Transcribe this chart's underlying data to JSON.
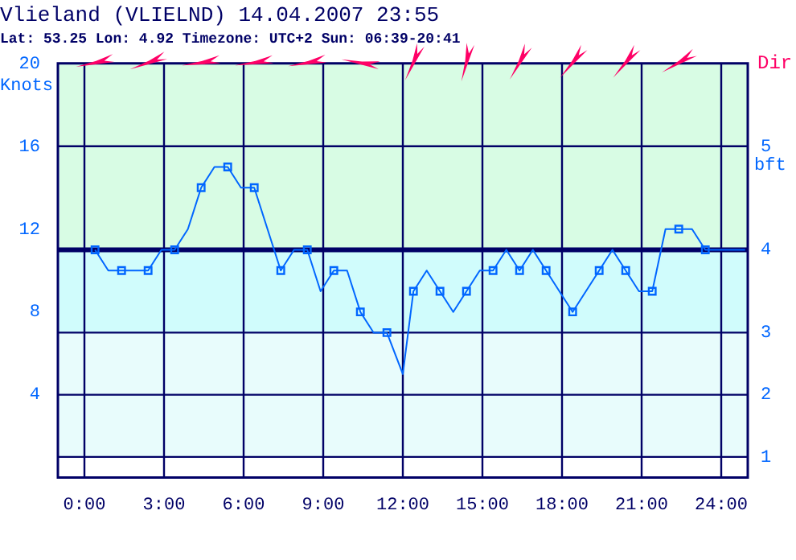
{
  "chart_data": {
    "type": "line",
    "title": "Vlieland (VLIELND) 14.04.2007 23:55",
    "subtitle": "Lat: 53.25 Lon: 4.92 Timezone: UTC+2 Sun: 06:39-20:41",
    "ylabel": "Knots",
    "y2label": "bft",
    "annotations": [
      "Dir",
      "1",
      "2",
      "3",
      "4",
      "5"
    ],
    "series": [
      {
        "color": "#0066ff",
        "marker": "none",
        "x": [
          0.4,
          0.9,
          1.4,
          2.4,
          2.9,
          3.4,
          3.9,
          4.4,
          4.9,
          5.4,
          5.9,
          6.4,
          7.4,
          7.9,
          8.4,
          8.9,
          9.4,
          9.9,
          10.4,
          10.9,
          11.4,
          12.0,
          12.4,
          12.9,
          13.4,
          13.9,
          14.4,
          14.9,
          15.4,
          15.9,
          16.4,
          16.9,
          17.4,
          17.9,
          18.4,
          18.9,
          19.4,
          19.9,
          20.4,
          20.9,
          21.4,
          21.9,
          22.4,
          22.9,
          23.4,
          24.9
        ],
        "values": [
          11,
          10,
          10,
          10,
          11,
          11,
          12,
          14,
          15,
          15,
          14,
          14,
          10,
          11,
          11,
          9,
          10,
          10,
          8,
          7,
          7,
          5,
          9,
          10,
          9,
          8,
          9,
          10,
          10,
          11,
          10,
          11,
          10,
          9,
          8,
          9,
          10,
          11,
          10,
          9,
          9,
          12,
          12,
          12,
          11,
          11
        ]
      },
      {
        "type": "scatter",
        "color": "#0066ff",
        "marker": "square",
        "x": [
          0.4,
          1.4,
          2.4,
          3.4,
          4.4,
          5.4,
          6.4,
          7.4,
          8.4,
          9.4,
          10.4,
          11.4,
          12.4,
          13.4,
          14.4,
          15.4,
          16.4,
          17.4,
          18.4,
          19.4,
          20.4,
          21.4,
          22.4,
          23.4
        ],
        "values": [
          11,
          10,
          10,
          11,
          14,
          15,
          14,
          10,
          11,
          10,
          8,
          7,
          9,
          9,
          9,
          10,
          10,
          10,
          8,
          10,
          10,
          9,
          12,
          11
        ]
      }
    ],
    "xlim": [
      -1,
      25
    ],
    "xticks": [
      {
        "value": 0,
        "label": "0:00"
      },
      {
        "value": 3,
        "label": "3:00"
      },
      {
        "value": 6,
        "label": "6:00"
      },
      {
        "value": 9,
        "label": "9:00"
      },
      {
        "value": 12,
        "label": "12:00"
      },
      {
        "value": 15,
        "label": "15:00"
      },
      {
        "value": 18,
        "label": "18:00"
      },
      {
        "value": 21,
        "label": "21:00"
      },
      {
        "value": 24,
        "label": "24:00"
      }
    ],
    "ylim": [
      0,
      20
    ],
    "yticks": [
      4,
      8,
      12,
      16,
      20
    ],
    "bands": [
      {
        "axis": "y",
        "from": 11,
        "to": 20,
        "color": "#d8fce4"
      },
      {
        "axis": "y",
        "from": 7,
        "to": 11,
        "color": "#d0fcfc"
      },
      {
        "axis": "y",
        "from": 1,
        "to": 7,
        "color": "#e8fcfc"
      }
    ],
    "ref_lines": [
      {
        "axis": "y",
        "value": 1
      },
      {
        "axis": "y",
        "value": 4
      },
      {
        "axis": "y",
        "value": 7
      },
      {
        "axis": "y",
        "value": 11,
        "color": "#000066"
      },
      {
        "axis": "y",
        "value": 16
      }
    ],
    "grid": "x",
    "legend": false
  }
}
